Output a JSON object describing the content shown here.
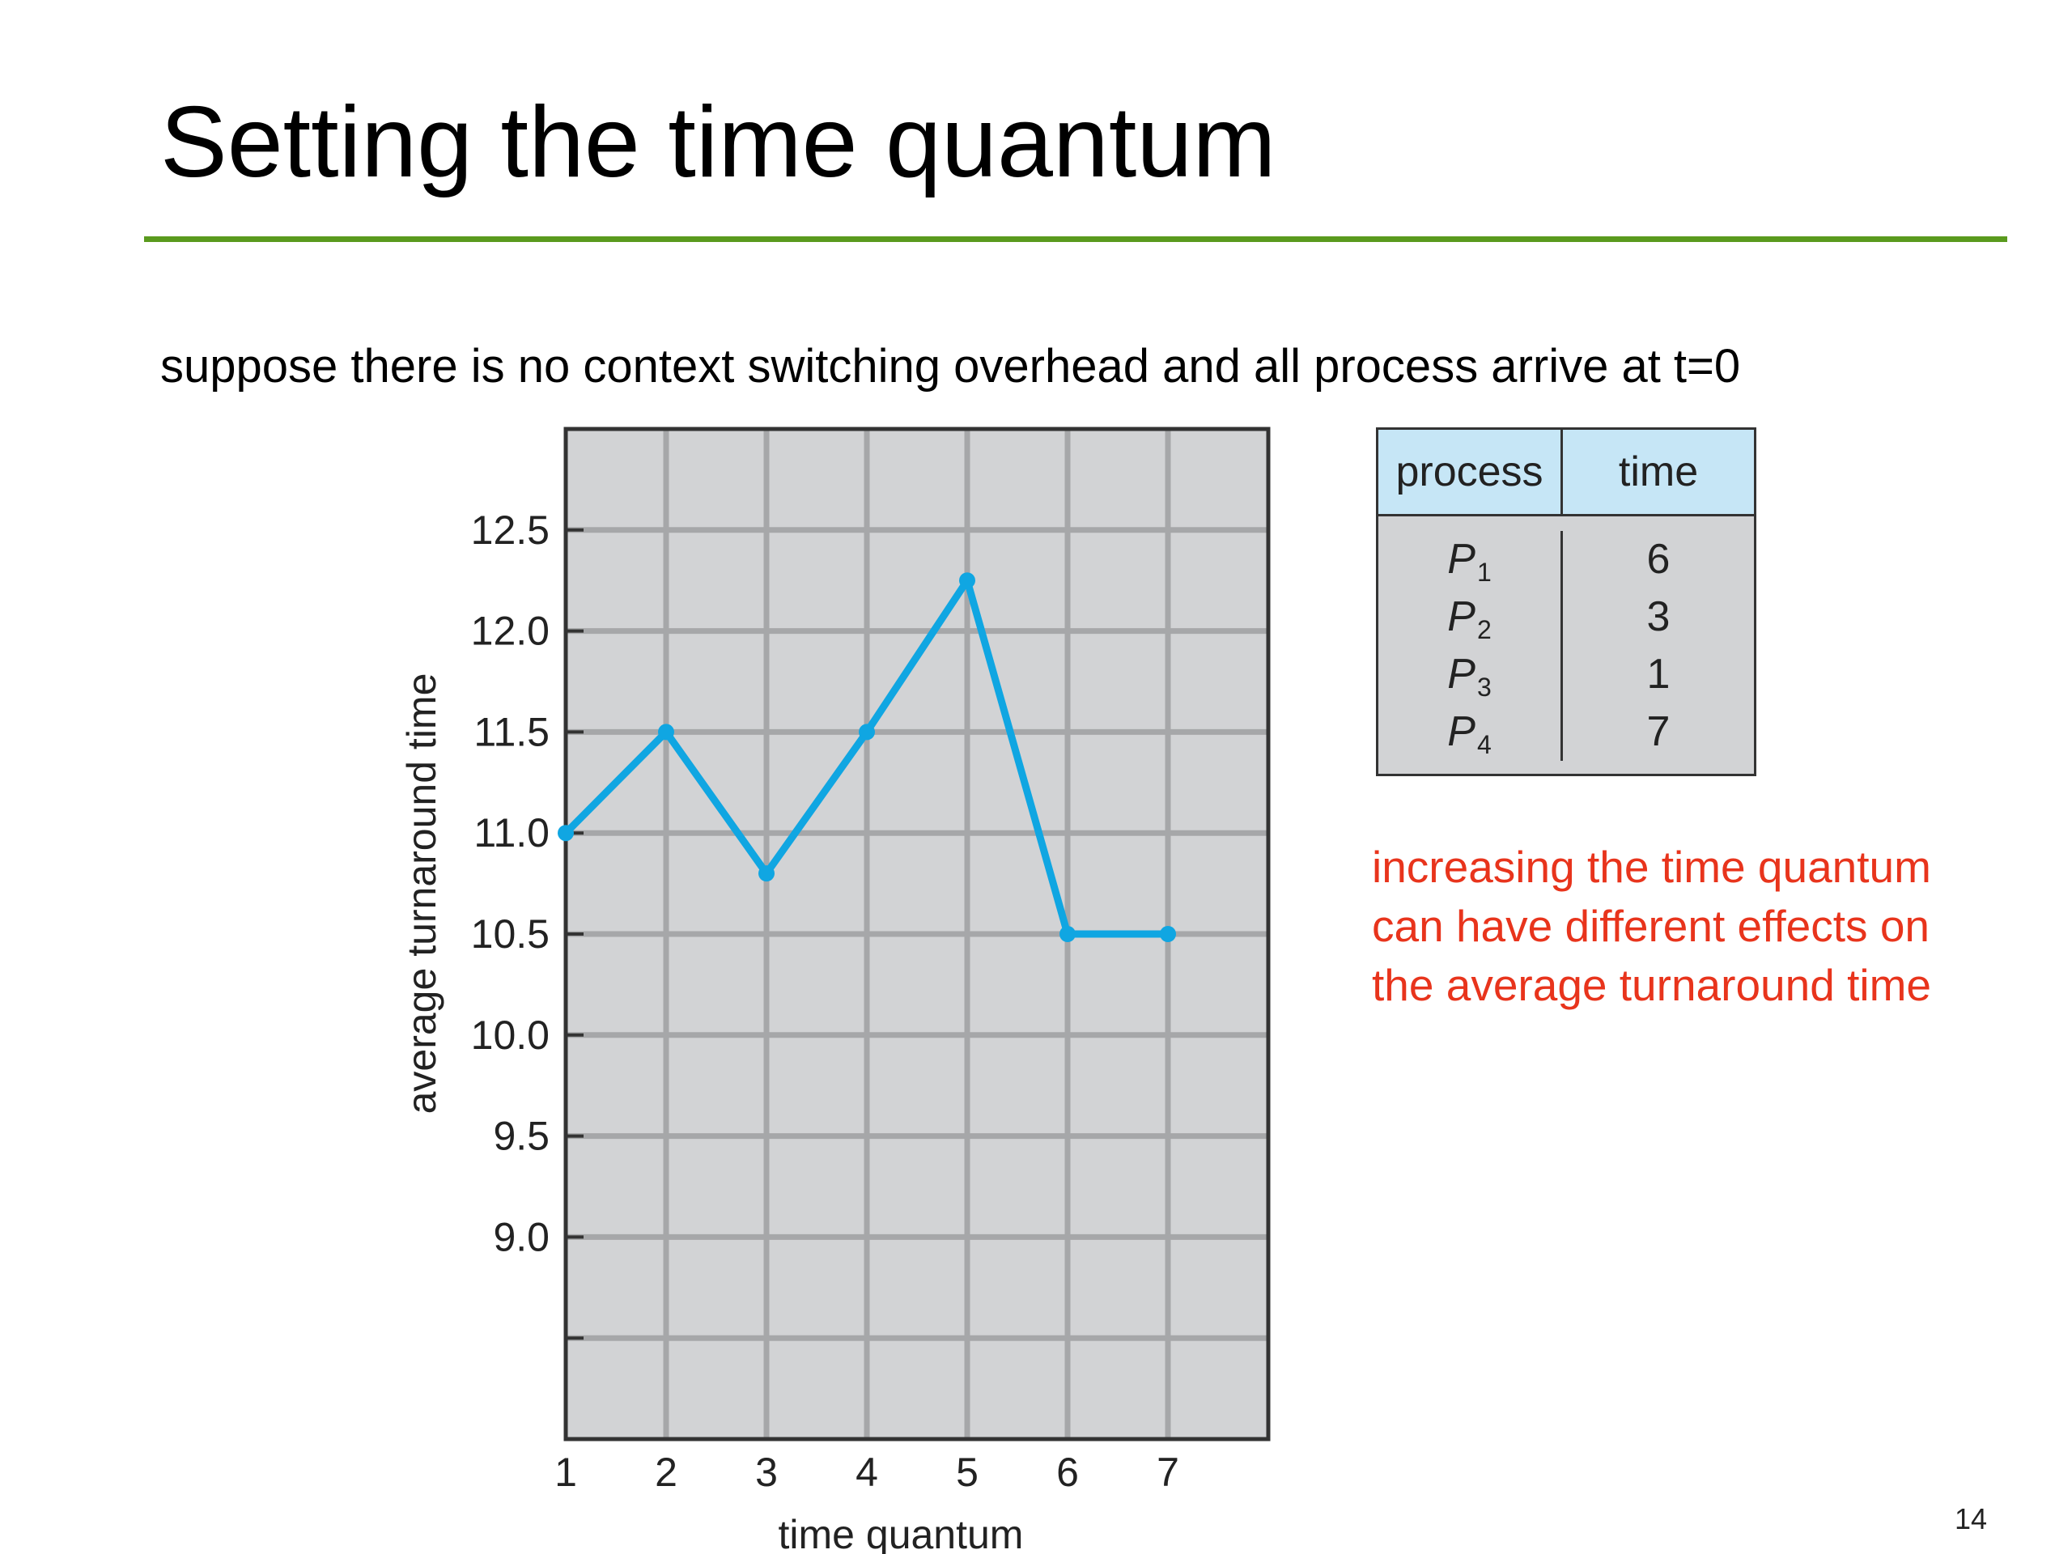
{
  "slide": {
    "title": "Setting the time quantum",
    "subtitle": "suppose there is no context switching overhead and all process arrive at t=0",
    "note_lines": [
      "increasing the time quantum",
      "can have different effects on",
      "the average turnaround time"
    ],
    "page_number": "14"
  },
  "process_table": {
    "headers": [
      "process",
      "time"
    ],
    "rows": [
      {
        "name": "P",
        "sub": "1",
        "time": "6"
      },
      {
        "name": "P",
        "sub": "2",
        "time": "3"
      },
      {
        "name": "P",
        "sub": "3",
        "time": "1"
      },
      {
        "name": "P",
        "sub": "4",
        "time": "7"
      }
    ]
  },
  "colors": {
    "accent_rule": "#5a9a1e",
    "note_text": "#e8341c",
    "series_line": "#10a6e2",
    "plot_background": "#d2d3d5",
    "gridline": "#a6a7a9",
    "table_header": "#c6e6f6"
  },
  "chart_data": {
    "type": "line",
    "title": "",
    "xlabel": "time quantum",
    "ylabel": "average turnaround time",
    "x": [
      1,
      2,
      3,
      4,
      5,
      6,
      7
    ],
    "series": [
      {
        "values": [
          11.0,
          11.5,
          10.8,
          11.5,
          12.25,
          10.5,
          10.5
        ]
      }
    ],
    "x_ticks": [
      "1",
      "2",
      "3",
      "4",
      "5",
      "6",
      "7"
    ],
    "y_ticks": [
      "9.0",
      "9.5",
      "10.0",
      "10.5",
      "11.0",
      "11.5",
      "12.0",
      "12.5"
    ],
    "xlim": [
      1,
      8
    ],
    "ylim": [
      8.0,
      13.0
    ],
    "grid": true,
    "legend": "none"
  }
}
